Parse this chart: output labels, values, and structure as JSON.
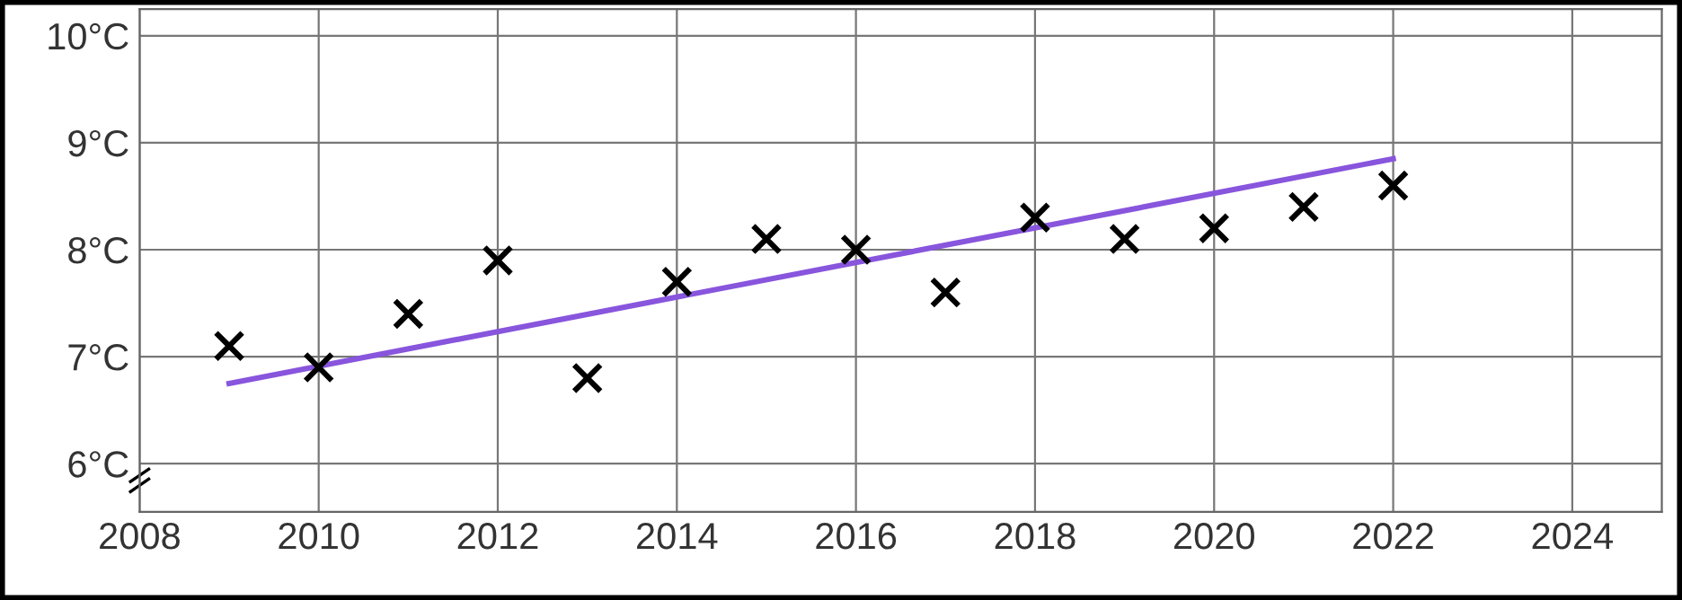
{
  "chart_data": {
    "type": "scatter",
    "series": [
      {
        "type": "scatter",
        "color": "#000000",
        "marker": "cross",
        "x": [
          2009,
          2010,
          2011,
          2012,
          2013,
          2014,
          2015,
          2016,
          2017,
          2018,
          2019,
          2020,
          2021,
          2022
        ],
        "values": [
          7.1,
          6.9,
          7.4,
          7.9,
          6.8,
          7.7,
          8.1,
          8.0,
          7.6,
          8.3,
          8.1,
          8.2,
          8.4,
          8.6
        ]
      },
      {
        "type": "line",
        "color": "#8855dd",
        "line_style": "solid",
        "x": [
          2009,
          2022
        ],
        "values": [
          6.75,
          8.85
        ]
      }
    ],
    "xlim": [
      2008,
      2025
    ],
    "xticks": [
      2008,
      2010,
      2012,
      2014,
      2016,
      2018,
      2020,
      2022,
      2024
    ],
    "ylim": [
      5.55,
      10.25
    ],
    "yticks": [
      {
        "value": 6,
        "label": "6°C"
      },
      {
        "value": 7,
        "label": "7°C"
      },
      {
        "value": 8,
        "label": "8°C"
      },
      {
        "value": 9,
        "label": "9°C"
      },
      {
        "value": 10,
        "label": "10°C"
      }
    ],
    "grid": true
  }
}
